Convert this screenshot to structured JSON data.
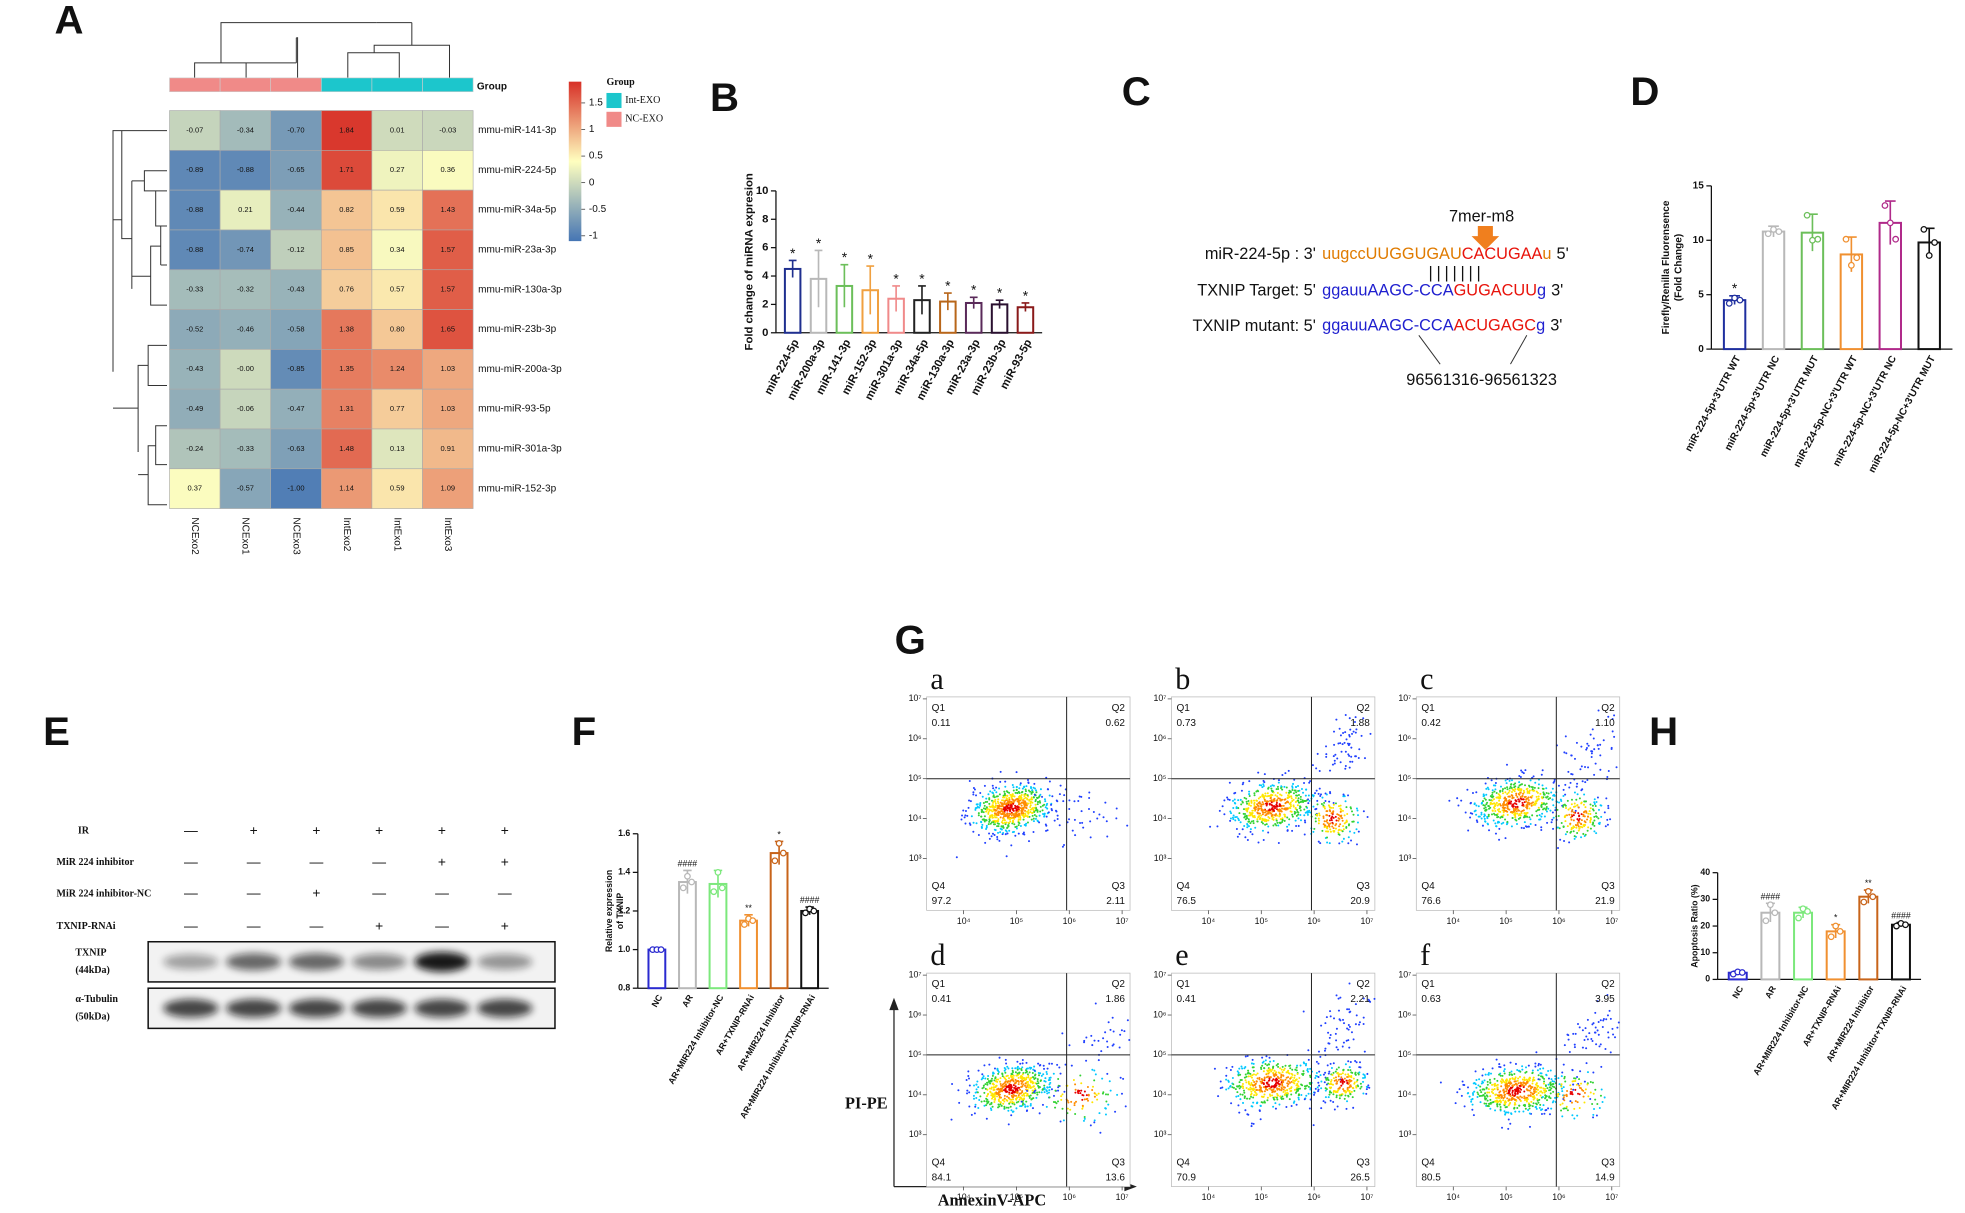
{
  "panels": [
    "A",
    "B",
    "C",
    "D",
    "E",
    "F",
    "G",
    "H"
  ],
  "chart_data": [
    {
      "type": "heatmap",
      "rows": [
        "mmu-miR-141-3p",
        "mmu-miR-224-5p",
        "mmu-miR-34a-5p",
        "mmu-miR-23a-3p",
        "mmu-miR-130a-3p",
        "mmu-miR-23b-3p",
        "mmu-miR-200a-3p",
        "mmu-miR-93-5p",
        "mmu-miR-301a-3p",
        "mmu-miR-152-3p"
      ],
      "columns": [
        "NCExo2",
        "NCExo1",
        "NCExo3",
        "IntExo2",
        "IntExo1",
        "IntExo3"
      ],
      "values": [
        [
          -0.07,
          -0.34,
          -0.7,
          1.84,
          0.01,
          -0.03
        ],
        [
          -0.89,
          -0.88,
          -0.65,
          1.71,
          0.27,
          0.36
        ],
        [
          -0.88,
          0.21,
          -0.44,
          0.82,
          0.59,
          1.43
        ],
        [
          -0.88,
          -0.74,
          -0.12,
          0.85,
          0.34,
          1.57
        ],
        [
          -0.33,
          -0.32,
          -0.43,
          0.76,
          0.57,
          1.57
        ],
        [
          -0.52,
          -0.46,
          -0.58,
          1.38,
          0.8,
          1.65
        ],
        [
          -0.43,
          0,
          -0.85,
          1.35,
          1.24,
          1.03
        ],
        [
          -0.49,
          -0.06,
          -0.47,
          1.31,
          0.77,
          1.03
        ],
        [
          -0.24,
          -0.33,
          -0.63,
          1.48,
          0.13,
          0.91
        ],
        [
          0.37,
          -0.57,
          -1.0,
          1.14,
          0.59,
          1.09
        ]
      ],
      "value_labels": [
        [
          "-0.07",
          "-0.34",
          "-0.70",
          "1.84",
          "0.01",
          "-0.03"
        ],
        [
          "-0.89",
          "-0.88",
          "-0.65",
          "1.71",
          "0.27",
          "0.36"
        ],
        [
          "-0.88",
          "0.21",
          "-0.44",
          "0.82",
          "0.59",
          "1.43"
        ],
        [
          "-0.88",
          "-0.74",
          "-0.12",
          "0.85",
          "0.34",
          "1.57"
        ],
        [
          "-0.33",
          "-0.32",
          "-0.43",
          "0.76",
          "0.57",
          "1.57"
        ],
        [
          "-0.52",
          "-0.46",
          "-0.58",
          "1.38",
          "0.80",
          "1.65"
        ],
        [
          "-0.43",
          "-0.00",
          "-0.85",
          "1.35",
          "1.24",
          "1.03"
        ],
        [
          "-0.49",
          "-0.06",
          "-0.47",
          "1.31",
          "0.77",
          "1.03"
        ],
        [
          "-0.24",
          "-0.33",
          "-0.63",
          "1.48",
          "0.13",
          "0.91"
        ],
        [
          "0.37",
          "-0.57",
          "-1.00",
          "1.14",
          "0.59",
          "1.09"
        ]
      ],
      "group_label": "Group",
      "column_groups": [
        1,
        1,
        1,
        0,
        0,
        0
      ],
      "legend": {
        "title": "Group",
        "items": [
          {
            "name": "Int-EXO",
            "color": "#1cc6cc"
          },
          {
            "name": "NC-EXO",
            "color": "#f08a88"
          }
        ]
      },
      "colorbar": {
        "lim": [
          -1.1,
          1.9
        ],
        "ticks": [
          -1,
          -0.5,
          0,
          0.5,
          1,
          1.5
        ],
        "colors": [
          "#4575b4",
          "#ffffbf",
          "#d73027"
        ]
      }
    },
    {
      "type": "bar",
      "ylabel": [
        "Fold change of miRNA expresion"
      ],
      "categories": [
        "miR-224-5p",
        "miR-200a-3p",
        "miR-141-3p",
        "miR-152-3p",
        "miR-301a-3p",
        "miR-34a-5p",
        "miR-130a-3p",
        "miR-23a-3p",
        "miR-23b-3p",
        "miR-93-5p"
      ],
      "values": [
        4.5,
        3.8,
        3.3,
        3.0,
        2.4,
        2.3,
        2.2,
        2.1,
        2.0,
        1.8
      ],
      "errors": [
        0.6,
        2.0,
        1.5,
        1.7,
        0.9,
        1.0,
        0.6,
        0.4,
        0.3,
        0.3
      ],
      "colors": [
        "#1f2f8f",
        "#b8b8b8",
        "#6cbf5a",
        "#f0a040",
        "#f08a8a",
        "#222222",
        "#b8661a",
        "#5a2a5a",
        "#2a1030",
        "#8a1a1a"
      ],
      "significance": [
        "*",
        "*",
        "*",
        "*",
        "*",
        "*",
        "*",
        "*",
        "*",
        "*"
      ],
      "ylim": [
        0,
        10
      ],
      "yticks": [
        0,
        2,
        4,
        6,
        8,
        10
      ]
    },
    {
      "type": "bar",
      "ylabel": [
        "Firefly/Renilla Fluorensence",
        "(Fold Change)"
      ],
      "categories": [
        "miR-224-5p+3'UTR WT",
        "miR-224-5p+3'UTR NC",
        "miR-224-5p+3'UTR MUT",
        "miR-224-5p-NC+3'UTR WT",
        "miR-224-5p-NC+3'UTR NC",
        "miR-224-5p-NC+3'UTR MUT"
      ],
      "values": [
        4.5,
        10.8,
        10.7,
        8.7,
        11.6,
        9.8
      ],
      "errors": [
        0.4,
        0.5,
        1.7,
        1.6,
        2.0,
        1.3
      ],
      "points": [
        [
          4.2,
          4.7,
          4.5
        ],
        [
          10.6,
          11.0,
          10.8
        ],
        [
          12.3,
          10.0,
          10.1
        ],
        [
          10.1,
          7.7,
          8.4
        ],
        [
          13.2,
          11.6,
          10.1
        ],
        [
          11.0,
          8.6,
          9.8
        ]
      ],
      "colors": [
        "#1f2f9f",
        "#b8b8b8",
        "#6cbf5a",
        "#f09030",
        "#b02a8a",
        "#111111"
      ],
      "significance": [
        "*",
        null,
        null,
        null,
        null,
        null
      ],
      "ylim": [
        0,
        15
      ],
      "yticks": [
        0,
        5,
        10,
        15
      ]
    },
    {
      "type": "bar",
      "ylabel": [
        "Relative expression",
        "of TXNIP"
      ],
      "categories": [
        "NC",
        "AR",
        "AR+MIR224 Inhibitor-NC",
        "AR+TXNIP-RNAi",
        "AR+MIR224 Inhibitor",
        "AR+MIR224 Inhibitor+TXNIP-RNAi"
      ],
      "values": [
        1.0,
        1.35,
        1.34,
        1.15,
        1.5,
        1.2
      ],
      "errors": [
        0.01,
        0.06,
        0.07,
        0.03,
        0.06,
        0.02
      ],
      "points": [
        [
          1.0,
          1.0,
          1.0
        ],
        [
          1.32,
          1.38,
          1.35
        ],
        [
          1.3,
          1.4,
          1.32
        ],
        [
          1.13,
          1.16,
          1.15
        ],
        [
          1.46,
          1.55,
          1.5
        ],
        [
          1.19,
          1.21,
          1.2
        ]
      ],
      "colors": [
        "#2a2ad0",
        "#b8b8b8",
        "#7ce87c",
        "#f09030",
        "#c8641a",
        "#111111"
      ],
      "significance": [
        null,
        "####",
        null,
        "**",
        "*",
        "####"
      ],
      "ylim": [
        0.8,
        1.6
      ],
      "yticks": [
        0.8,
        {
          "value": 1,
          "label": "1.0"
        },
        1.2,
        1.4,
        1.6
      ]
    },
    {
      "type": "bar",
      "ylabel": [
        "Apoptosis Ratio (%)"
      ],
      "categories": [
        "NC",
        "AR",
        "AR+MIR224 Inhibitor-NC",
        "AR+TXNIP-RNAi",
        "AR+MIR224 Inhibitor",
        "AR+MIR224 Inhibitor+TXNIP-RNAi"
      ],
      "values": [
        2.5,
        25,
        25,
        18,
        31,
        20.5
      ],
      "errors": [
        0.6,
        3.5,
        2.0,
        2.5,
        2.5,
        0.8
      ],
      "points": [
        [
          2.0,
          2.8,
          2.6
        ],
        [
          22,
          28,
          25
        ],
        [
          23,
          26.5,
          25.5
        ],
        [
          16,
          20,
          18
        ],
        [
          29,
          33,
          31
        ],
        [
          20,
          21,
          20.5
        ]
      ],
      "colors": [
        "#2a2ad0",
        "#b8b8b8",
        "#7ce87c",
        "#f09030",
        "#c8641a",
        "#111111"
      ],
      "significance": [
        null,
        "####",
        null,
        "*",
        "**",
        "####"
      ],
      "ylim": [
        0,
        40
      ],
      "yticks": [
        0,
        10,
        20,
        30,
        40
      ]
    },
    {
      "type": "flow",
      "xlabel": "AnnexinV-APC",
      "ylabel": "PI-PE",
      "xlim": [
        3.3,
        7.15
      ],
      "ylim": [
        1.7,
        7.05
      ],
      "xticks": [
        {
          "value": 4,
          "label": "10⁴"
        },
        {
          "value": 5,
          "label": "10⁵"
        },
        {
          "value": 6,
          "label": "10⁶"
        },
        {
          "value": 7,
          "label": "10⁷"
        }
      ],
      "yticks": [
        {
          "value": 3,
          "label": "10³"
        },
        {
          "value": 4,
          "label": "10⁴"
        },
        {
          "value": 5,
          "label": "10⁵"
        },
        {
          "value": 6,
          "label": "10⁶"
        },
        {
          "value": 7,
          "label": "10⁷"
        }
      ],
      "gate": [
        5.95,
        5.0
      ],
      "plots": [
        {
          "label": "a",
          "quadrants": [
            {
              "name": "Q1",
              "value": "0.11"
            },
            {
              "name": "Q2",
              "value": "0.62"
            },
            {
              "name": "Q3",
              "value": "2.11"
            },
            {
              "name": "Q4",
              "value": "97.2"
            }
          ]
        },
        {
          "label": "b",
          "quadrants": [
            {
              "name": "Q1",
              "value": "0.73"
            },
            {
              "name": "Q2",
              "value": "1.88"
            },
            {
              "name": "Q3",
              "value": "20.9"
            },
            {
              "name": "Q4",
              "value": "76.5"
            }
          ]
        },
        {
          "label": "c",
          "quadrants": [
            {
              "name": "Q1",
              "value": "0.42"
            },
            {
              "name": "Q2",
              "value": "1.10"
            },
            {
              "name": "Q3",
              "value": "21.9"
            },
            {
              "name": "Q4",
              "value": "76.6"
            }
          ]
        },
        {
          "label": "d",
          "quadrants": [
            {
              "name": "Q1",
              "value": "0.41"
            },
            {
              "name": "Q2",
              "value": "1.86"
            },
            {
              "name": "Q3",
              "value": "13.6"
            },
            {
              "name": "Q4",
              "value": "84.1"
            }
          ]
        },
        {
          "label": "e",
          "quadrants": [
            {
              "name": "Q1",
              "value": "0.41"
            },
            {
              "name": "Q2",
              "value": "2.21"
            },
            {
              "name": "Q3",
              "value": "26.5"
            },
            {
              "name": "Q4",
              "value": "70.9"
            }
          ]
        },
        {
          "label": "f",
          "quadrants": [
            {
              "name": "Q1",
              "value": "0.63"
            },
            {
              "name": "Q2",
              "value": "3.95"
            },
            {
              "name": "Q3",
              "value": "14.9"
            },
            {
              "name": "Q4",
              "value": "80.5"
            }
          ]
        }
      ]
    }
  ],
  "sequence_panel": {
    "site": "7mer-m8",
    "lines": [
      {
        "label": "miR-224-5p : 3'",
        "parts": [
          {
            "text": "uugccUUGGUGAU",
            "color": "#e07b00"
          },
          {
            "text": "CACUGAA",
            "color": "#e8140c"
          },
          {
            "text": "u",
            "color": "#e07b00"
          }
        ],
        "end": "5'"
      },
      {
        "label": "TXNIP Target: 5'",
        "parts": [
          {
            "text": "ggauuAAGC-CCA",
            "color": "#1f1fcf"
          },
          {
            "text": "GUGACUU",
            "color": "#e8140c"
          },
          {
            "text": "g",
            "color": "#1f1fcf"
          }
        ],
        "end": "3'"
      },
      {
        "label": "TXNIP mutant: 5'",
        "parts": [
          {
            "text": "ggauuAAGC-CCA",
            "color": "#1f1fcf"
          },
          {
            "text": "ACUGAGC",
            "color": "#e8140c"
          },
          {
            "text": "g",
            "color": "#1f1fcf"
          }
        ],
        "end": "3'"
      }
    ],
    "pairing": "|||||||",
    "position": "96561316-96561323"
  },
  "blot": {
    "conditions": [
      {
        "name": "IR",
        "signs": [
          "—",
          "+",
          "+",
          "+",
          "+",
          "+"
        ]
      },
      {
        "name": "MiR 224 inhibitor",
        "signs": [
          "—",
          "—",
          "—",
          "—",
          "+",
          "+"
        ]
      },
      {
        "name": "MiR 224 inhibitor-NC",
        "signs": [
          "—",
          "—",
          "+",
          "—",
          "—",
          "—"
        ]
      },
      {
        "name": "TXNIP-RNAi",
        "signs": [
          "—",
          "—",
          "—",
          "+",
          "—",
          "+"
        ]
      }
    ],
    "bands": [
      {
        "name": "TXNIP",
        "size": "(44kDa)"
      },
      {
        "name": "α-Tubulin",
        "size": "(50kDa)"
      }
    ]
  }
}
